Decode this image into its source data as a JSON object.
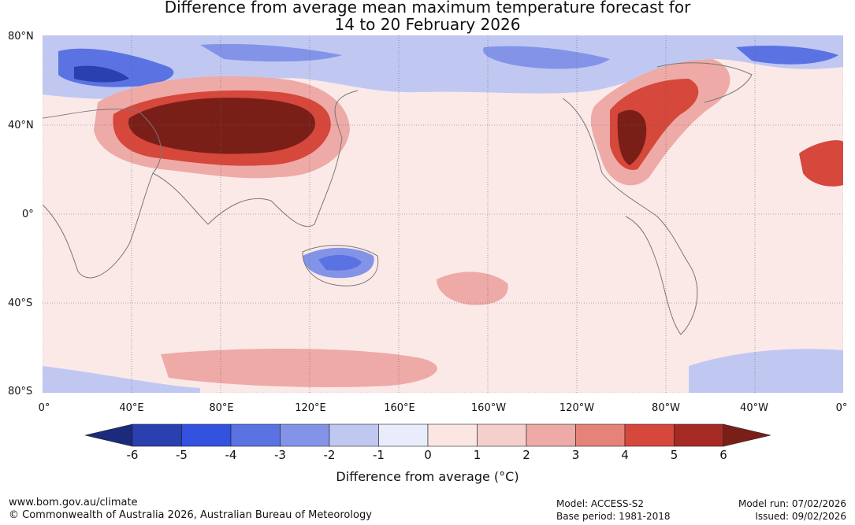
{
  "title_line1": "Difference from average mean maximum temperature forecast for",
  "title_line2": "14 to 20 February 2026",
  "lat_labels": [
    "80°N",
    "40°N",
    "0°",
    "40°S",
    "80°S"
  ],
  "lon_labels": [
    "0°",
    "40°E",
    "80°E",
    "120°E",
    "160°E",
    "160°W",
    "120°W",
    "80°W",
    "40°W",
    "0°"
  ],
  "colorbar": {
    "ticks": [
      "-6",
      "-5",
      "-4",
      "-3",
      "-2",
      "-1",
      "0",
      "1",
      "2",
      "3",
      "4",
      "5",
      "6"
    ],
    "label": "Difference from average ($^\\circ$C)",
    "label_display": "Difference from average (°C)",
    "colors": [
      "#1b2a7a",
      "#2a40b0",
      "#3352e0",
      "#5a72e2",
      "#8394e8",
      "#c0c8f2",
      "#e8ecfb",
      "#fbe6e4",
      "#f5cfcc",
      "#eeaaa6",
      "#e5827a",
      "#d6473c",
      "#a52a24",
      "#7a1f18"
    ]
  },
  "footer": {
    "url": "www.bom.gov.au/climate",
    "copyright": "© Commonwealth of Australia 2026, Australian Bureau of Meteorology",
    "model": "Model: ACCESS-S2",
    "base_period": "Base period: 1981-2018",
    "model_run": "Model run: 07/02/2026",
    "issued": "Issued: 09/02/2026"
  },
  "map_colors": {
    "ocean_base": "#fbe9e8",
    "land_line": "#777777",
    "grid": "#666666"
  }
}
